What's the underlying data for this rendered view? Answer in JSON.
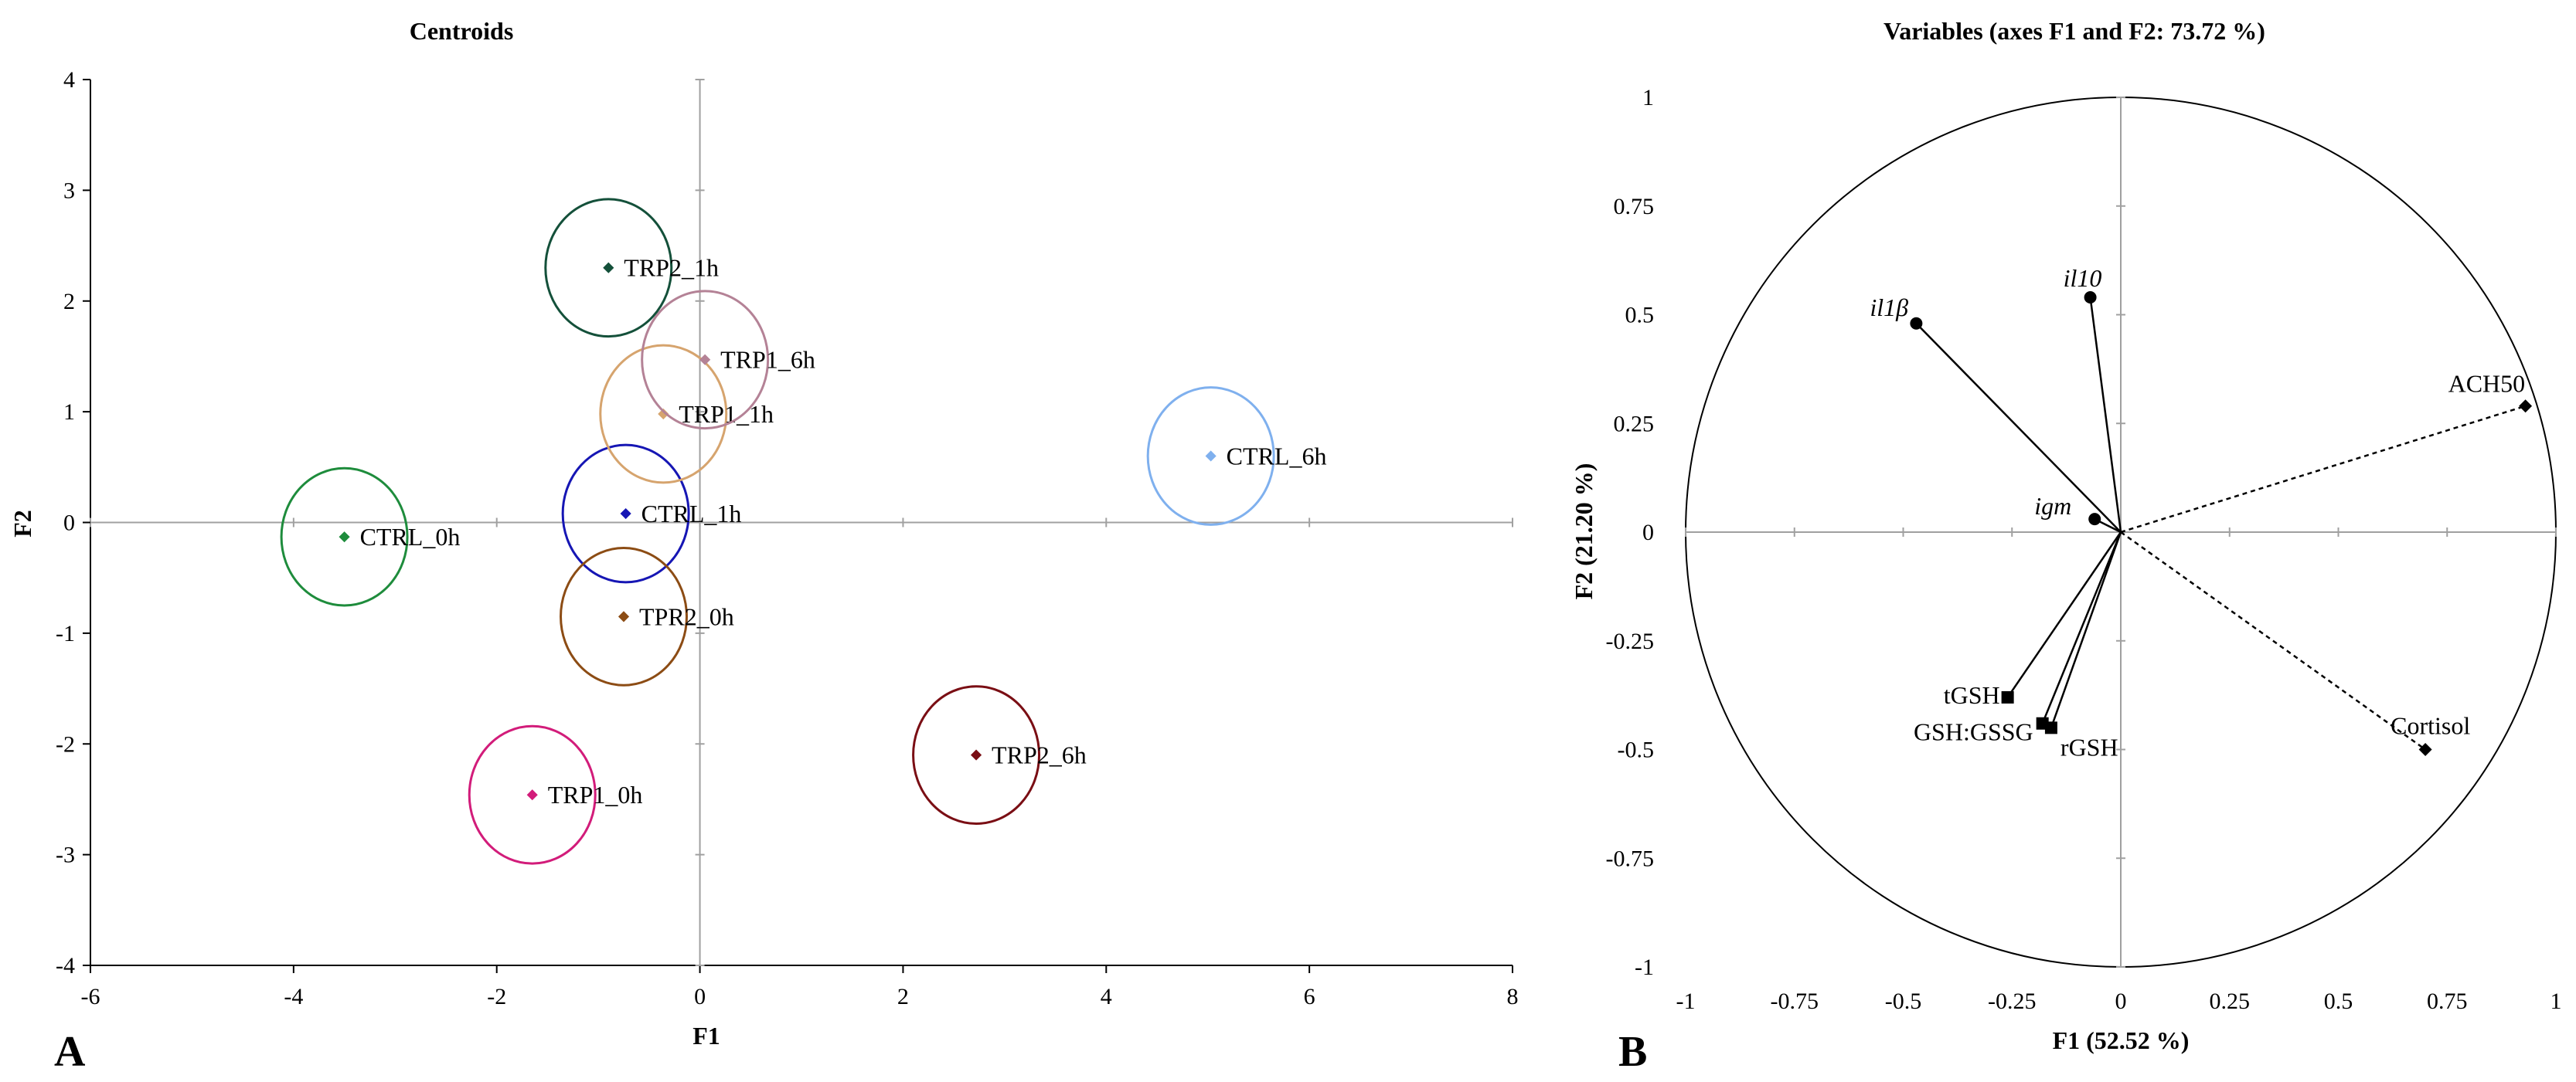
{
  "chart_data": [
    {
      "panel_label": "A",
      "type": "scatter",
      "title": "Centroids",
      "xlabel": "F1",
      "ylabel": "F2",
      "xlim": [
        -6,
        8
      ],
      "ylim": [
        -4,
        4
      ],
      "xticks": [
        -6,
        -4,
        -2,
        0,
        2,
        4,
        6,
        8
      ],
      "yticks": [
        -4,
        -3,
        -2,
        -1,
        0,
        1,
        2,
        3,
        4
      ],
      "grid": false,
      "points": [
        {
          "label": "CTRL_0h",
          "x": -3.5,
          "y": -0.13,
          "r": 0.62,
          "color": "#1e8c3c"
        },
        {
          "label": "CTRL_1h",
          "x": -0.73,
          "y": 0.08,
          "r": 0.62,
          "color": "#1616b4"
        },
        {
          "label": "CTRL_6h",
          "x": 5.03,
          "y": 0.6,
          "r": 0.62,
          "color": "#7fb0ee"
        },
        {
          "label": "TRP1_0h",
          "x": -1.65,
          "y": -2.46,
          "r": 0.62,
          "color": "#d21c7a"
        },
        {
          "label": "TRP1_1h",
          "x": -0.36,
          "y": 0.98,
          "r": 0.62,
          "color": "#d6a46e"
        },
        {
          "label": "TRP1_6h",
          "x": 0.05,
          "y": 1.47,
          "r": 0.62,
          "color": "#b48296"
        },
        {
          "label": "TRP2_1h",
          "x": -0.9,
          "y": 2.3,
          "r": 0.62,
          "color": "#14503a"
        },
        {
          "label": "TPR2_0h",
          "x": -0.75,
          "y": -0.85,
          "r": 0.62,
          "color": "#8c4c14"
        },
        {
          "label": "TRP2_6h",
          "x": 2.72,
          "y": -2.1,
          "r": 0.62,
          "color": "#7a0e14"
        }
      ]
    },
    {
      "panel_label": "B",
      "type": "scatter",
      "title": "Variables (axes F1 and F2: 73.72 %)",
      "xlabel": "F1 (52.52 %)",
      "ylabel": "F2 (21.20 %)",
      "xlim": [
        -1,
        1
      ],
      "ylim": [
        -1,
        1
      ],
      "xticks": [
        -1,
        -0.75,
        -0.5,
        -0.25,
        0,
        0.25,
        0.5,
        0.75,
        1
      ],
      "yticks": [
        -1,
        -0.75,
        -0.5,
        -0.25,
        0,
        0.25,
        0.5,
        0.75,
        1
      ],
      "grid": false,
      "correlation_circle": true,
      "variables": [
        {
          "label": "il1β",
          "x": -0.47,
          "y": 0.48,
          "marker": "circle",
          "line": "solid",
          "italic": true
        },
        {
          "label": "il10",
          "x": -0.07,
          "y": 0.54,
          "marker": "circle",
          "line": "solid",
          "italic": true
        },
        {
          "label": "igm",
          "x": -0.06,
          "y": 0.03,
          "marker": "circle",
          "line": "solid",
          "italic": true
        },
        {
          "label": "ACH50",
          "x": 0.93,
          "y": 0.29,
          "marker": "diamond",
          "line": "dotted",
          "italic": false
        },
        {
          "label": "Cortisol",
          "x": 0.7,
          "y": -0.5,
          "marker": "diamond",
          "line": "dotted",
          "italic": false
        },
        {
          "label": "tGSH",
          "x": -0.26,
          "y": -0.38,
          "marker": "square",
          "line": "solid",
          "italic": false
        },
        {
          "label": "GSH:GSSG",
          "x": -0.18,
          "y": -0.44,
          "marker": "square",
          "line": "solid",
          "italic": false
        },
        {
          "label": "rGSH",
          "x": -0.16,
          "y": -0.45,
          "marker": "square",
          "line": "solid",
          "italic": false
        }
      ]
    }
  ]
}
